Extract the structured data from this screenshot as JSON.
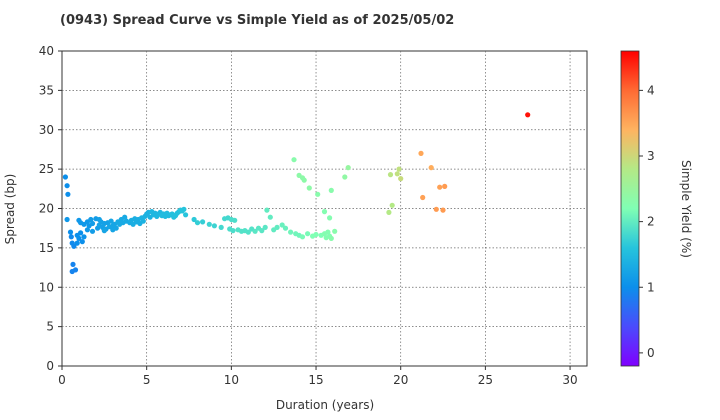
{
  "chart_data": {
    "type": "scatter",
    "title": "(0943)   Spread Curve vs Simple Yield as of 2025/05/02",
    "xlabel": "Duration (years)",
    "ylabel": "Spread (bp)",
    "xlim": [
      0,
      31
    ],
    "ylim": [
      0,
      40
    ],
    "xticks": [
      "0",
      "5",
      "10",
      "15",
      "20",
      "25",
      "30"
    ],
    "yticks": [
      "0",
      "5",
      "10",
      "15",
      "20",
      "25",
      "30",
      "35",
      "40"
    ],
    "grid": true,
    "colorbar": {
      "label": "Simple Yield (%)",
      "range": [
        -0.2,
        4.6
      ],
      "ticks": [
        "0",
        "1",
        "2",
        "3",
        "4"
      ],
      "colormap": "rainbow"
    },
    "points": [
      [
        0.2,
        24.0,
        1.0
      ],
      [
        0.3,
        22.9,
        1.0
      ],
      [
        0.35,
        21.8,
        1.0
      ],
      [
        0.3,
        18.6,
        1.1
      ],
      [
        0.5,
        17.0,
        1.0
      ],
      [
        0.55,
        16.4,
        0.95
      ],
      [
        0.6,
        15.6,
        0.95
      ],
      [
        0.7,
        15.2,
        0.95
      ],
      [
        0.65,
        12.9,
        0.9
      ],
      [
        0.8,
        12.2,
        0.9
      ],
      [
        0.6,
        12.0,
        0.9
      ],
      [
        0.9,
        15.6,
        1.0
      ],
      [
        1.0,
        16.2,
        1.0
      ],
      [
        1.1,
        16.9,
        1.0
      ],
      [
        1.2,
        15.8,
        1.0
      ],
      [
        0.9,
        16.6,
        1.0
      ],
      [
        1.3,
        16.4,
        1.05
      ],
      [
        1.5,
        17.3,
        1.1
      ],
      [
        1.6,
        17.8,
        1.1
      ],
      [
        1.0,
        18.5,
        1.1
      ],
      [
        1.1,
        18.2,
        1.1
      ],
      [
        1.3,
        18.0,
        1.1
      ],
      [
        1.5,
        18.3,
        1.1
      ],
      [
        1.7,
        18.6,
        1.15
      ],
      [
        1.8,
        18.1,
        1.15
      ],
      [
        2.0,
        18.7,
        1.15
      ],
      [
        2.1,
        17.5,
        1.15
      ],
      [
        2.2,
        17.9,
        1.2
      ],
      [
        2.3,
        18.3,
        1.2
      ],
      [
        2.4,
        17.6,
        1.2
      ],
      [
        2.5,
        18.1,
        1.2
      ],
      [
        2.6,
        17.4,
        1.2
      ],
      [
        2.7,
        18.2,
        1.2
      ],
      [
        2.8,
        17.7,
        1.25
      ],
      [
        2.9,
        18.4,
        1.25
      ],
      [
        3.0,
        17.8,
        1.25
      ],
      [
        3.1,
        18.0,
        1.25
      ],
      [
        3.2,
        17.5,
        1.25
      ],
      [
        3.3,
        18.3,
        1.3
      ],
      [
        3.4,
        18.0,
        1.3
      ],
      [
        3.5,
        18.6,
        1.3
      ],
      [
        3.6,
        18.2,
        1.3
      ],
      [
        3.7,
        18.9,
        1.3
      ],
      [
        3.8,
        18.4,
        1.3
      ],
      [
        4.0,
        18.2,
        1.3
      ],
      [
        4.1,
        18.5,
        1.35
      ],
      [
        4.2,
        18.0,
        1.35
      ],
      [
        4.3,
        18.7,
        1.35
      ],
      [
        4.4,
        18.3,
        1.35
      ],
      [
        4.5,
        18.6,
        1.35
      ],
      [
        4.6,
        18.1,
        1.35
      ],
      [
        4.7,
        18.8,
        1.4
      ],
      [
        4.8,
        18.4,
        1.4
      ],
      [
        4.9,
        19.0,
        1.4
      ],
      [
        5.0,
        19.3,
        1.4
      ],
      [
        5.1,
        19.5,
        1.4
      ],
      [
        5.2,
        18.9,
        1.4
      ],
      [
        5.3,
        19.6,
        1.45
      ],
      [
        5.4,
        19.2,
        1.45
      ],
      [
        5.5,
        19.4,
        1.45
      ],
      [
        5.6,
        19.0,
        1.45
      ],
      [
        5.7,
        19.3,
        1.45
      ],
      [
        5.8,
        19.5,
        1.45
      ],
      [
        5.9,
        19.1,
        1.5
      ],
      [
        6.0,
        19.3,
        1.5
      ],
      [
        6.1,
        19.0,
        1.5
      ],
      [
        6.2,
        19.4,
        1.5
      ],
      [
        6.3,
        19.1,
        1.5
      ],
      [
        6.4,
        19.2,
        1.5
      ],
      [
        6.5,
        19.3,
        1.55
      ],
      [
        6.6,
        18.9,
        1.55
      ],
      [
        6.7,
        19.1,
        1.55
      ],
      [
        6.8,
        19.4,
        1.55
      ],
      [
        6.9,
        19.6,
        1.55
      ],
      [
        7.0,
        19.8,
        1.6
      ],
      [
        7.1,
        19.7,
        1.6
      ],
      [
        7.2,
        19.9,
        1.6
      ],
      [
        7.3,
        19.2,
        1.6
      ],
      [
        2.5,
        17.2,
        1.25
      ],
      [
        3.0,
        17.3,
        1.25
      ],
      [
        1.8,
        17.1,
        1.15
      ],
      [
        2.2,
        18.6,
        1.2
      ],
      [
        7.8,
        18.6,
        1.65
      ],
      [
        8.0,
        18.2,
        1.7
      ],
      [
        8.3,
        18.3,
        1.7
      ],
      [
        8.7,
        18.0,
        1.75
      ],
      [
        9.0,
        17.8,
        1.75
      ],
      [
        9.4,
        17.6,
        1.8
      ],
      [
        9.6,
        18.7,
        1.8
      ],
      [
        9.8,
        18.8,
        1.8
      ],
      [
        10.0,
        18.6,
        1.85
      ],
      [
        10.2,
        18.5,
        1.85
      ],
      [
        9.9,
        17.4,
        1.85
      ],
      [
        10.1,
        17.2,
        1.85
      ],
      [
        10.4,
        17.3,
        1.9
      ],
      [
        10.6,
        17.1,
        1.9
      ],
      [
        10.8,
        17.2,
        1.9
      ],
      [
        11.0,
        17.0,
        1.9
      ],
      [
        11.2,
        17.4,
        1.9
      ],
      [
        11.4,
        17.1,
        1.95
      ],
      [
        11.6,
        17.5,
        1.95
      ],
      [
        11.8,
        17.2,
        1.95
      ],
      [
        12.0,
        17.6,
        1.95
      ],
      [
        12.1,
        19.8,
        2.0
      ],
      [
        12.3,
        18.9,
        2.0
      ],
      [
        12.5,
        17.3,
        2.0
      ],
      [
        12.7,
        17.6,
        2.0
      ],
      [
        13.0,
        17.9,
        2.05
      ],
      [
        13.2,
        17.5,
        2.05
      ],
      [
        13.5,
        17.0,
        2.1
      ],
      [
        13.8,
        16.8,
        2.1
      ],
      [
        14.0,
        16.6,
        2.1
      ],
      [
        14.2,
        16.4,
        2.15
      ],
      [
        14.5,
        16.8,
        2.15
      ],
      [
        14.8,
        16.5,
        2.2
      ],
      [
        15.0,
        16.7,
        2.2
      ],
      [
        15.3,
        16.6,
        2.2
      ],
      [
        15.5,
        16.8,
        2.25
      ],
      [
        15.6,
        16.3,
        2.25
      ],
      [
        15.7,
        17.0,
        2.25
      ],
      [
        15.8,
        16.5,
        2.25
      ],
      [
        15.9,
        16.2,
        2.3
      ],
      [
        15.5,
        19.6,
        2.25
      ],
      [
        15.8,
        18.8,
        2.25
      ],
      [
        16.1,
        17.1,
        2.3
      ],
      [
        13.7,
        26.2,
        2.3
      ],
      [
        14.0,
        24.2,
        2.35
      ],
      [
        14.2,
        23.9,
        2.35
      ],
      [
        14.3,
        23.6,
        2.35
      ],
      [
        14.6,
        22.6,
        2.35
      ],
      [
        15.1,
        21.8,
        2.3
      ],
      [
        15.9,
        22.3,
        2.3
      ],
      [
        16.7,
        24.0,
        2.4
      ],
      [
        16.9,
        25.2,
        2.45
      ],
      [
        19.3,
        19.5,
        2.8
      ],
      [
        19.4,
        24.3,
        2.85
      ],
      [
        19.5,
        20.4,
        2.8
      ],
      [
        19.8,
        24.4,
        2.9
      ],
      [
        19.9,
        25.0,
        2.9
      ],
      [
        20.0,
        23.8,
        2.95
      ],
      [
        21.2,
        27.0,
        3.5
      ],
      [
        21.3,
        21.4,
        3.55
      ],
      [
        21.8,
        25.2,
        3.45
      ],
      [
        22.1,
        19.9,
        3.6
      ],
      [
        22.3,
        22.7,
        3.55
      ],
      [
        22.5,
        19.8,
        3.6
      ],
      [
        22.6,
        22.8,
        3.6
      ],
      [
        27.5,
        31.9,
        4.5
      ]
    ]
  }
}
